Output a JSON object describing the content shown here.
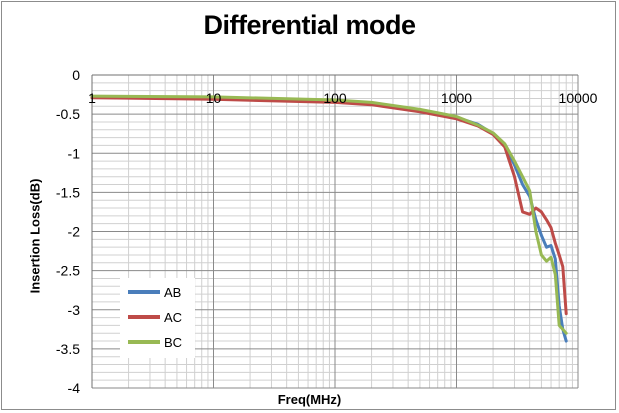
{
  "chart_data": {
    "type": "line",
    "title": "Differential mode",
    "xlabel": "Freq(MHz)",
    "ylabel": "Insertion Loss(dB)",
    "x_scale": "log",
    "xlim": [
      1,
      10000
    ],
    "ylim": [
      -4,
      0
    ],
    "x_ticks": [
      "1",
      "10",
      "100",
      "1000",
      "10000"
    ],
    "y_ticks": [
      "0",
      "-0.5",
      "-1",
      "-1.5",
      "-2",
      "-2.5",
      "-3",
      "-3.5",
      "-4"
    ],
    "grid": true,
    "legend_position": "bottom-left",
    "series": [
      {
        "name": "AB",
        "color": "#4a7ebb",
        "points": [
          [
            1,
            -0.28
          ],
          [
            10,
            -0.29
          ],
          [
            100,
            -0.33
          ],
          [
            200,
            -0.37
          ],
          [
            500,
            -0.45
          ],
          [
            1000,
            -0.54
          ],
          [
            1500,
            -0.63
          ],
          [
            2000,
            -0.75
          ],
          [
            2500,
            -0.9
          ],
          [
            3000,
            -1.15
          ],
          [
            3500,
            -1.4
          ],
          [
            4000,
            -1.55
          ],
          [
            4500,
            -1.85
          ],
          [
            5000,
            -2.05
          ],
          [
            5500,
            -2.2
          ],
          [
            6000,
            -2.18
          ],
          [
            6500,
            -2.35
          ],
          [
            7000,
            -2.95
          ],
          [
            7500,
            -3.25
          ],
          [
            8000,
            -3.4
          ]
        ]
      },
      {
        "name": "AC",
        "color": "#be4b48",
        "points": [
          [
            1,
            -0.29
          ],
          [
            10,
            -0.31
          ],
          [
            100,
            -0.35
          ],
          [
            200,
            -0.38
          ],
          [
            500,
            -0.47
          ],
          [
            1000,
            -0.56
          ],
          [
            1500,
            -0.65
          ],
          [
            2000,
            -0.76
          ],
          [
            2500,
            -0.92
          ],
          [
            3000,
            -1.3
          ],
          [
            3500,
            -1.75
          ],
          [
            4000,
            -1.78
          ],
          [
            4500,
            -1.7
          ],
          [
            5000,
            -1.75
          ],
          [
            5500,
            -1.85
          ],
          [
            6000,
            -1.95
          ],
          [
            6500,
            -2.15
          ],
          [
            7000,
            -2.3
          ],
          [
            7500,
            -2.45
          ],
          [
            8000,
            -3.05
          ]
        ]
      },
      {
        "name": "BC",
        "color": "#98b954",
        "points": [
          [
            1,
            -0.27
          ],
          [
            10,
            -0.28
          ],
          [
            100,
            -0.32
          ],
          [
            200,
            -0.35
          ],
          [
            500,
            -0.44
          ],
          [
            1000,
            -0.53
          ],
          [
            1500,
            -0.64
          ],
          [
            2000,
            -0.74
          ],
          [
            2500,
            -0.88
          ],
          [
            3000,
            -1.1
          ],
          [
            3500,
            -1.3
          ],
          [
            4000,
            -1.48
          ],
          [
            4500,
            -2.0
          ],
          [
            5000,
            -2.3
          ],
          [
            5500,
            -2.38
          ],
          [
            6000,
            -2.33
          ],
          [
            6500,
            -2.55
          ],
          [
            7000,
            -3.2
          ],
          [
            7500,
            -3.25
          ],
          [
            8000,
            -3.3
          ]
        ]
      }
    ]
  }
}
